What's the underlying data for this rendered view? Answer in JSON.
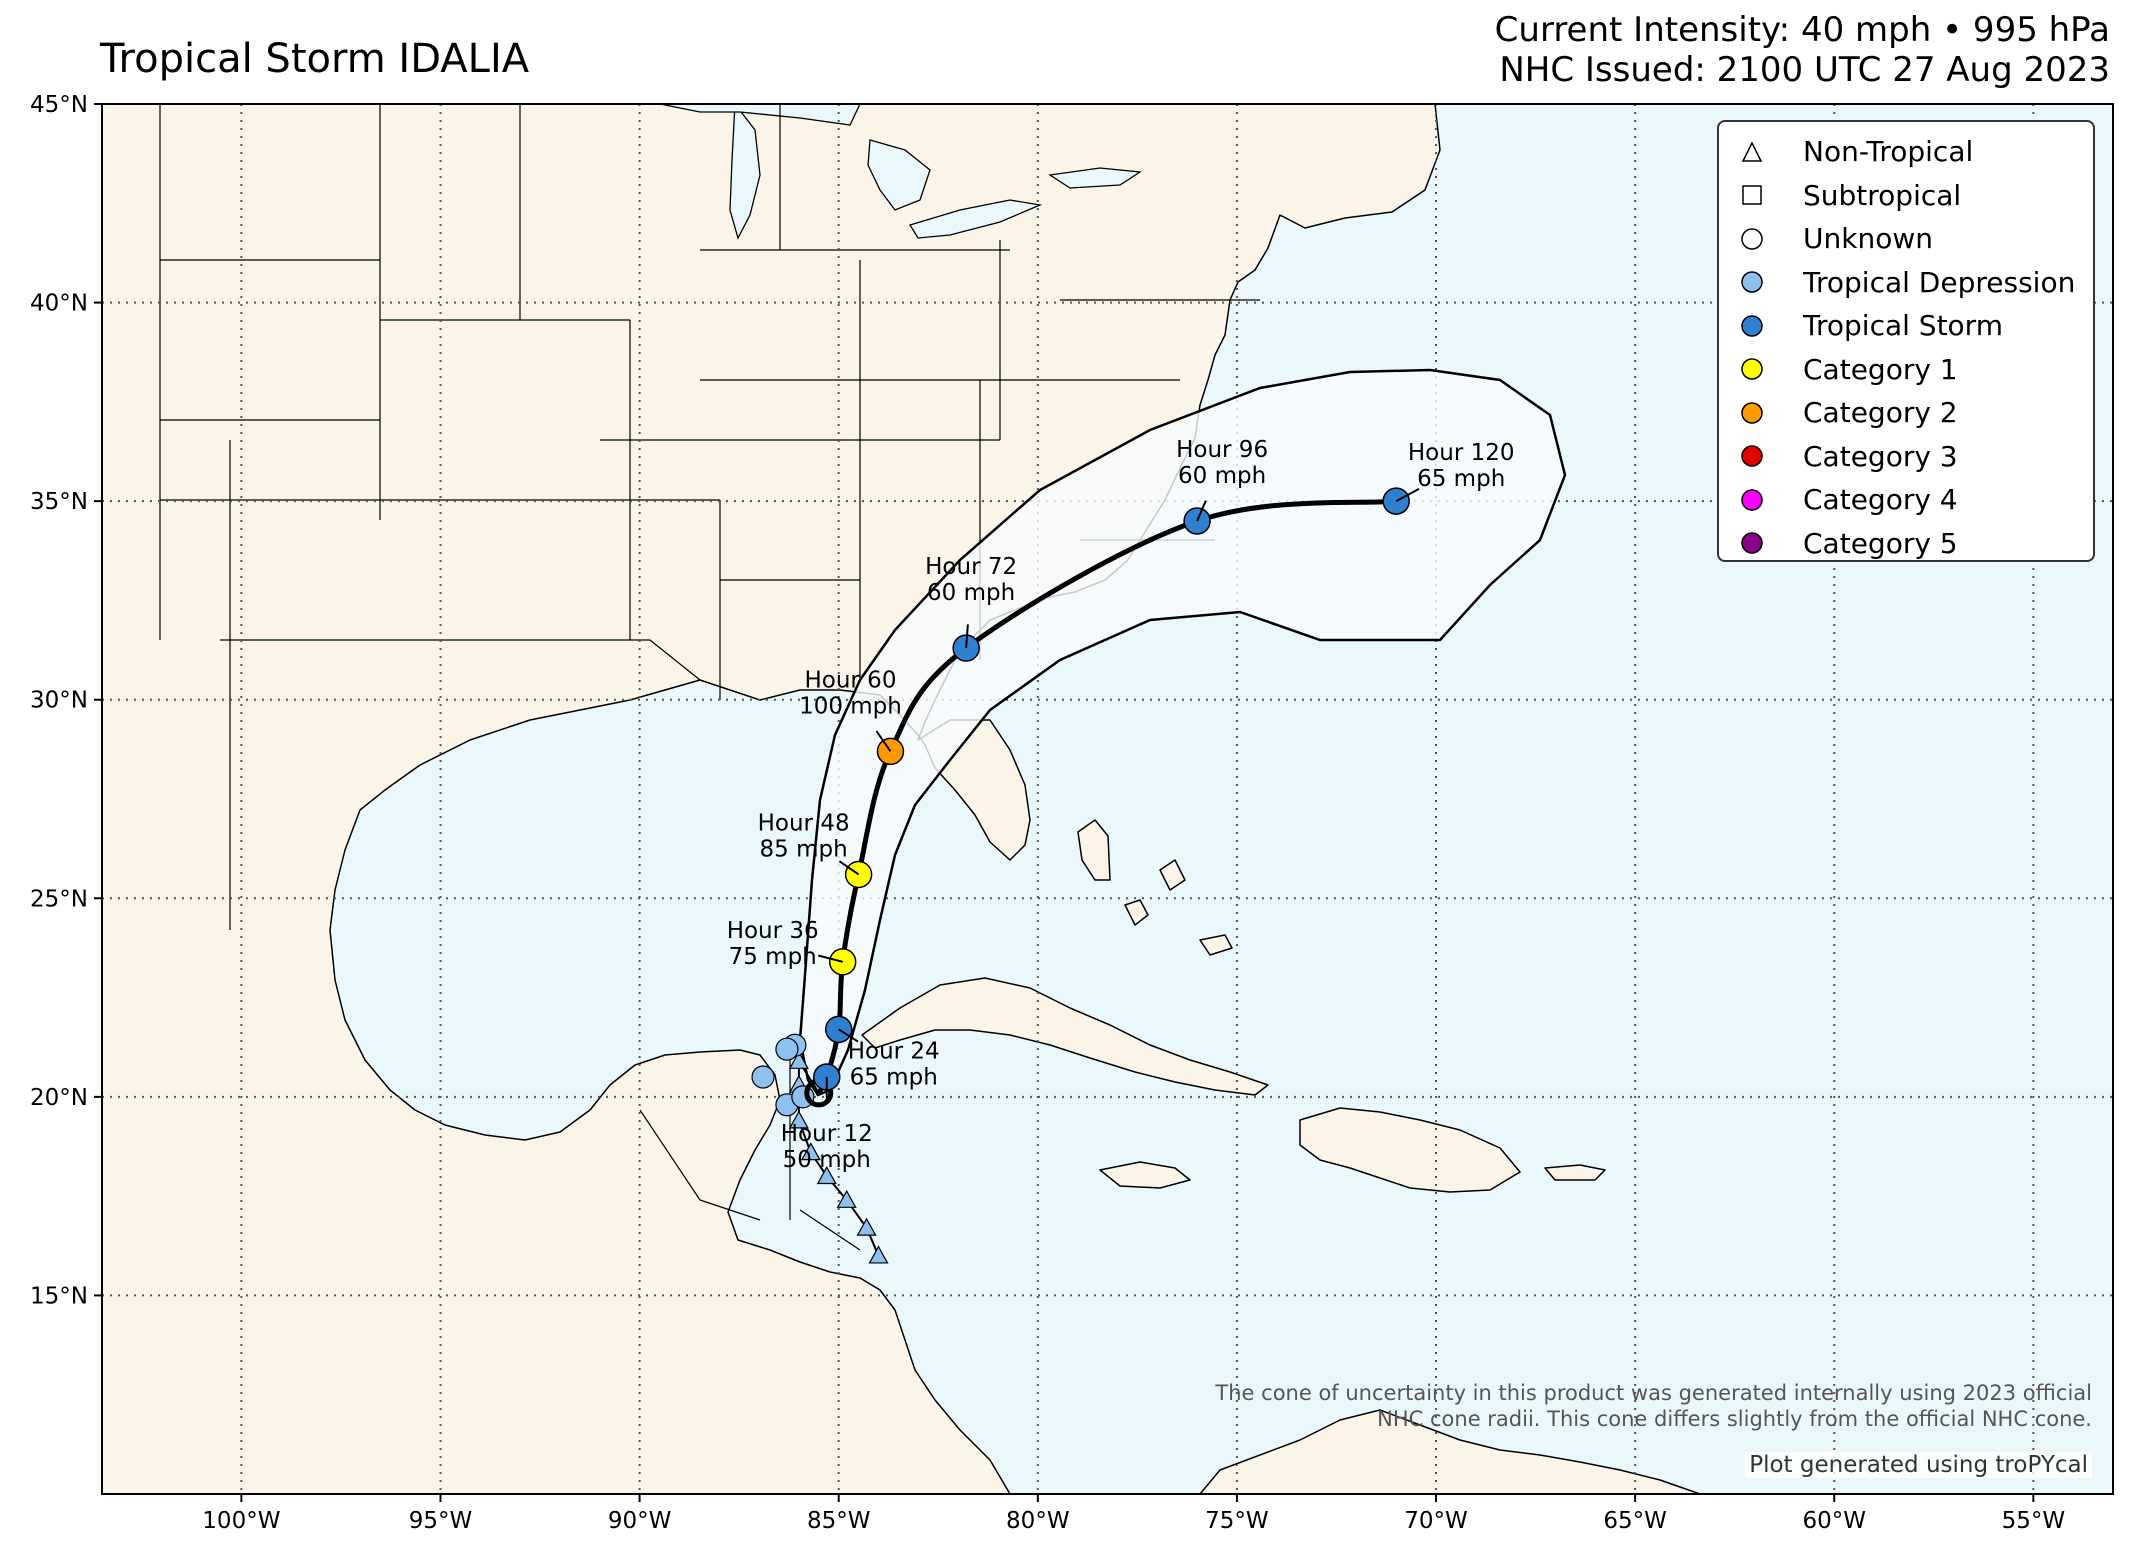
{
  "title": "Tropical Storm IDALIA",
  "header": {
    "intensity": "Current Intensity: 40 mph • 995 hPa",
    "issued": "NHC Issued: 2100 UTC 27 Aug 2023"
  },
  "axes": {
    "lon_ticks": [
      "100°W",
      "95°W",
      "90°W",
      "85°W",
      "80°W",
      "75°W",
      "70°W",
      "65°W",
      "60°W",
      "55°W"
    ],
    "lat_ticks": [
      "45°N",
      "40°N",
      "35°N",
      "30°N",
      "25°N",
      "20°N",
      "15°N"
    ]
  },
  "colors": {
    "land": "#fbf4e8",
    "ocean": "#eaf8fc",
    "cone_fill": "#f7fbfd",
    "tropical_depression": "#8ec0f0",
    "tropical_storm": "#2f80d0",
    "cat1": "#ffff00",
    "cat2": "#ff9900",
    "cat3": "#e60000",
    "cat4": "#ff00ff",
    "cat5": "#8b008b"
  },
  "legend": [
    {
      "label": "Non-Tropical",
      "symbol": "triangle"
    },
    {
      "label": "Subtropical",
      "symbol": "square"
    },
    {
      "label": "Unknown",
      "symbol": "circle"
    },
    {
      "label": "Tropical Depression",
      "symbol": "circle",
      "color": "#8ec0f0"
    },
    {
      "label": "Tropical Storm",
      "symbol": "circle",
      "color": "#2f80d0"
    },
    {
      "label": "Category 1",
      "symbol": "circle",
      "color": "#ffff00"
    },
    {
      "label": "Category 2",
      "symbol": "circle",
      "color": "#ff9900"
    },
    {
      "label": "Category 3",
      "symbol": "circle",
      "color": "#e60000"
    },
    {
      "label": "Category 4",
      "symbol": "circle",
      "color": "#ff00ff"
    },
    {
      "label": "Category 5",
      "symbol": "circle",
      "color": "#8b008b"
    }
  ],
  "forecast_points": [
    {
      "hour": "Hour 12",
      "wind": "50 mph",
      "lat": 20.5,
      "lon": -85.3,
      "color": "#2f80d0"
    },
    {
      "hour": "Hour 24",
      "wind": "65 mph",
      "lat": 21.7,
      "lon": -85.0,
      "color": "#2f80d0"
    },
    {
      "hour": "Hour 36",
      "wind": "75 mph",
      "lat": 23.4,
      "lon": -84.9,
      "color": "#ffff00"
    },
    {
      "hour": "Hour 48",
      "wind": "85 mph",
      "lat": 25.6,
      "lon": -84.5,
      "color": "#ffff00"
    },
    {
      "hour": "Hour 60",
      "wind": "100 mph",
      "lat": 28.7,
      "lon": -83.7,
      "color": "#ff9900"
    },
    {
      "hour": "Hour 72",
      "wind": "60 mph",
      "lat": 31.3,
      "lon": -81.8,
      "color": "#2f80d0"
    },
    {
      "hour": "Hour 96",
      "wind": "60 mph",
      "lat": 34.5,
      "lon": -76.0,
      "color": "#2f80d0"
    },
    {
      "hour": "Hour 120",
      "wind": "65 mph",
      "lat": 35.0,
      "lon": -71.0,
      "color": "#2f80d0"
    }
  ],
  "current_position": {
    "lat": 20.1,
    "lon": -85.5
  },
  "past_track": [
    {
      "lat": 16.0,
      "lon": -84.0,
      "type": "non-tropical"
    },
    {
      "lat": 16.7,
      "lon": -84.3,
      "type": "non-tropical"
    },
    {
      "lat": 17.4,
      "lon": -84.8,
      "type": "non-tropical"
    },
    {
      "lat": 18.0,
      "lon": -85.3,
      "type": "non-tropical"
    },
    {
      "lat": 18.6,
      "lon": -85.7,
      "type": "non-tropical"
    },
    {
      "lat": 19.4,
      "lon": -86.0,
      "type": "non-tropical"
    },
    {
      "lat": 20.3,
      "lon": -86.0,
      "type": "non-tropical"
    },
    {
      "lat": 20.9,
      "lon": -86.0,
      "type": "non-tropical"
    },
    {
      "lat": 21.3,
      "lon": -86.1,
      "type": "tropical-depression"
    },
    {
      "lat": 21.2,
      "lon": -86.3,
      "type": "tropical-depression"
    },
    {
      "lat": 20.5,
      "lon": -86.9,
      "type": "tropical-depression"
    },
    {
      "lat": 19.8,
      "lon": -86.3,
      "type": "tropical-depression"
    },
    {
      "lat": 20.0,
      "lon": -85.9,
      "type": "tropical-depression"
    }
  ],
  "disclaimer": [
    "The cone of uncertainty in this product was generated internally using 2023 official",
    "NHC cone radii. This cone differs slightly from the official NHC cone."
  ],
  "credit": "Plot generated using troPYcal"
}
